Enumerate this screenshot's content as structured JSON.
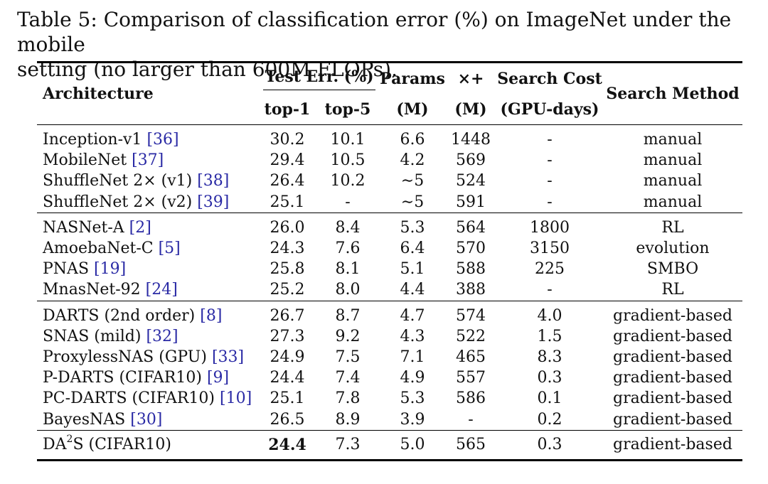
{
  "caption": {
    "line1": "Table 5: Comparison of classification error (%) on ImageNet under the mobile",
    "line2": "setting (no larger than 600M FLOPs)."
  },
  "header": {
    "architecture": "Architecture",
    "test_err": "Test Err. (%)",
    "top1": "top-1",
    "top5": "top-5",
    "params": "Params",
    "params_unit": "(M)",
    "mult_add": "×+",
    "mult_add_unit": "(M)",
    "search_cost": "Search Cost",
    "search_cost_unit": "(GPU-days)",
    "search_method": "Search Method"
  },
  "groups": [
    {
      "rows": [
        {
          "name": "Inception-v1",
          "ref": "[36]",
          "top1": "30.2",
          "top5": "10.1",
          "params": "6.6",
          "flops": "1448",
          "cost": "-",
          "method": "manual"
        },
        {
          "name": "MobileNet",
          "ref": "[37]",
          "top1": "29.4",
          "top5": "10.5",
          "params": "4.2",
          "flops": "569",
          "cost": "-",
          "method": "manual"
        },
        {
          "name": "ShuffleNet 2× (v1)",
          "ref": "[38]",
          "top1": "26.4",
          "top5": "10.2",
          "params": "∼5",
          "flops": "524",
          "cost": "-",
          "method": "manual"
        },
        {
          "name": "ShuffleNet 2× (v2)",
          "ref": "[39]",
          "top1": "25.1",
          "top5": "-",
          "params": "∼5",
          "flops": "591",
          "cost": "-",
          "method": "manual"
        }
      ]
    },
    {
      "rows": [
        {
          "name": "NASNet-A",
          "ref": "[2]",
          "top1": "26.0",
          "top5": "8.4",
          "params": "5.3",
          "flops": "564",
          "cost": "1800",
          "method": "RL"
        },
        {
          "name": "AmoebaNet-C",
          "ref": "[5]",
          "top1": "24.3",
          "top5": "7.6",
          "params": "6.4",
          "flops": "570",
          "cost": "3150",
          "method": "evolution"
        },
        {
          "name": "PNAS",
          "ref": "[19]",
          "top1": "25.8",
          "top5": "8.1",
          "params": "5.1",
          "flops": "588",
          "cost": "225",
          "method": "SMBO"
        },
        {
          "name": "MnasNet-92",
          "ref": "[24]",
          "top1": "25.2",
          "top5": "8.0",
          "params": "4.4",
          "flops": "388",
          "cost": "-",
          "method": "RL"
        }
      ]
    },
    {
      "rows": [
        {
          "name": "DARTS (2nd order)",
          "ref": "[8]",
          "top1": "26.7",
          "top5": "8.7",
          "params": "4.7",
          "flops": "574",
          "cost": "4.0",
          "method": "gradient-based"
        },
        {
          "name": "SNAS (mild)",
          "ref": "[32]",
          "top1": "27.3",
          "top5": "9.2",
          "params": "4.3",
          "flops": "522",
          "cost": "1.5",
          "method": "gradient-based"
        },
        {
          "name": "ProxylessNAS (GPU)",
          "ref": "[33]",
          "top1": "24.9",
          "top5": "7.5",
          "params": "7.1",
          "flops": "465",
          "cost": "8.3",
          "method": "gradient-based"
        },
        {
          "name": "P-DARTS (CIFAR10)",
          "ref": "[9]",
          "top1": "24.4",
          "top5": "7.4",
          "params": "4.9",
          "flops": "557",
          "cost": "0.3",
          "method": "gradient-based"
        },
        {
          "name": "PC-DARTS (CIFAR10)",
          "ref": "[10]",
          "top1": "25.1",
          "top5": "7.8",
          "params": "5.3",
          "flops": "586",
          "cost": "0.1",
          "method": "gradient-based"
        },
        {
          "name": "BayesNAS",
          "ref": "[30]",
          "top1": "26.5",
          "top5": "8.9",
          "params": "3.9",
          "flops": "-",
          "cost": "0.2",
          "method": "gradient-based"
        }
      ]
    }
  ],
  "ours": {
    "name_base": "DA",
    "name_sup": "2",
    "name_tail": "S (CIFAR10)",
    "top1": "24.4",
    "top5": "7.3",
    "params": "5.0",
    "flops": "565",
    "cost": "0.3",
    "method": "gradient-based"
  },
  "colors": {
    "reference_link": "#2a2aa5"
  }
}
